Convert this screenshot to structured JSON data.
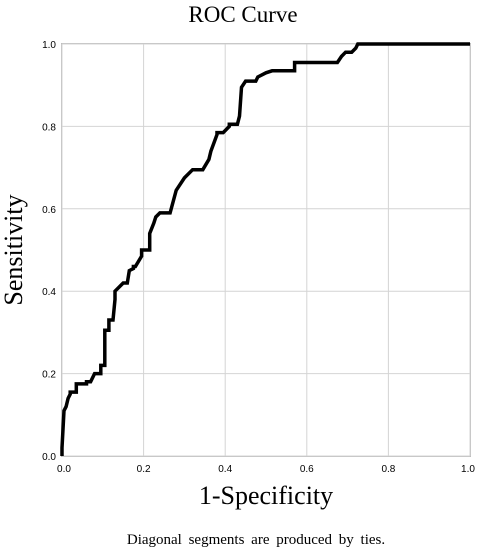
{
  "chart_data": {
    "type": "line",
    "title": "ROC Curve",
    "xlabel": "1-Specificity",
    "ylabel": "Sensitivity",
    "xlim": [
      0,
      1
    ],
    "ylim": [
      0,
      1
    ],
    "grid": true,
    "x_ticks": [
      "0.0",
      "0.2",
      "0.4",
      "0.6",
      "0.8",
      "1.0"
    ],
    "y_ticks": [
      "0.0",
      "0.2",
      "0.4",
      "0.6",
      "0.8",
      "1.0"
    ],
    "footnote": "Diagonal segments are produced by ties.",
    "series": [
      {
        "color": "#000000",
        "x": [
          0.0,
          0.0,
          0.005,
          0.01,
          0.015,
          0.02,
          0.02,
          0.035,
          0.035,
          0.06,
          0.06,
          0.07,
          0.08,
          0.095,
          0.095,
          0.105,
          0.105,
          0.115,
          0.115,
          0.125,
          0.13,
          0.13,
          0.15,
          0.16,
          0.165,
          0.175,
          0.175,
          0.18,
          0.195,
          0.195,
          0.215,
          0.215,
          0.225,
          0.23,
          0.24,
          0.265,
          0.28,
          0.3,
          0.32,
          0.33,
          0.345,
          0.36,
          0.365,
          0.38,
          0.38,
          0.395,
          0.41,
          0.41,
          0.43,
          0.435,
          0.44,
          0.45,
          0.475,
          0.48,
          0.5,
          0.515,
          0.57,
          0.57,
          0.59,
          0.675,
          0.685,
          0.695,
          0.71,
          0.72,
          0.725,
          1.0
        ],
        "y": [
          0.0,
          0.02,
          0.11,
          0.12,
          0.14,
          0.15,
          0.155,
          0.155,
          0.175,
          0.175,
          0.18,
          0.18,
          0.2,
          0.2,
          0.22,
          0.22,
          0.305,
          0.305,
          0.33,
          0.33,
          0.38,
          0.4,
          0.42,
          0.42,
          0.45,
          0.455,
          0.46,
          0.46,
          0.485,
          0.5,
          0.5,
          0.54,
          0.565,
          0.58,
          0.59,
          0.59,
          0.645,
          0.675,
          0.695,
          0.695,
          0.695,
          0.72,
          0.74,
          0.78,
          0.785,
          0.785,
          0.8,
          0.805,
          0.805,
          0.825,
          0.895,
          0.91,
          0.91,
          0.92,
          0.93,
          0.935,
          0.935,
          0.955,
          0.955,
          0.955,
          0.97,
          0.98,
          0.98,
          0.99,
          1.0,
          1.0
        ]
      }
    ]
  }
}
